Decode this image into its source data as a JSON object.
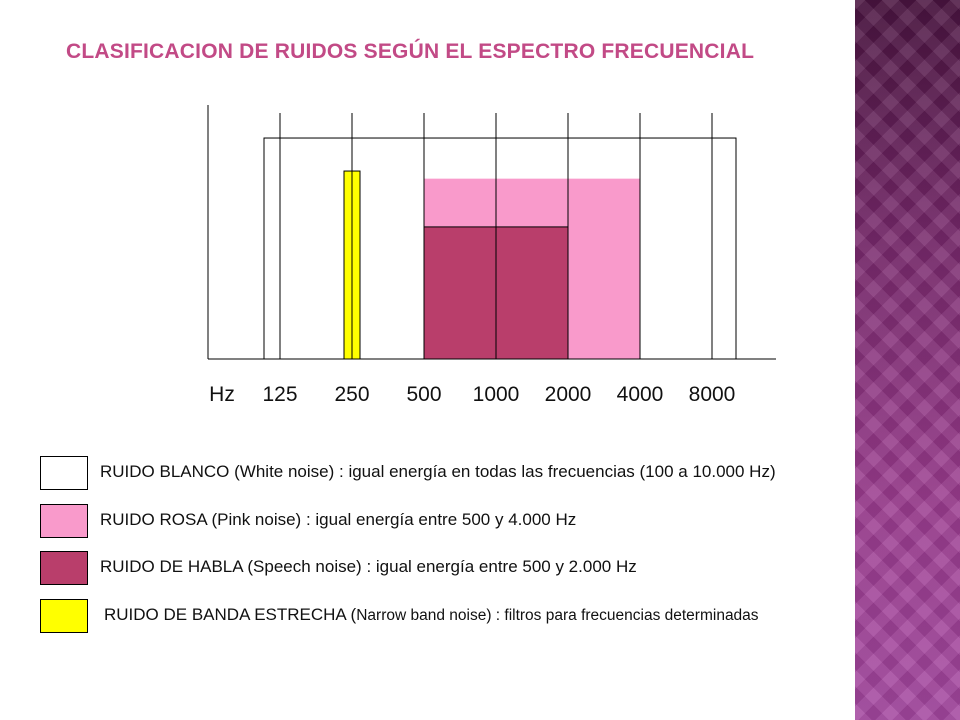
{
  "title": "CLASIFICACION DE RUIDOS SEGÚN EL ESPECTRO FRECUENCIAL",
  "colors": {
    "title": "#c24a86",
    "white_noise": "#ffffff",
    "pink_noise": "#f99acb",
    "speech_noise": "#b93e6b",
    "narrow_band": "#ffff00",
    "side_band": "#9c3d90"
  },
  "chart_data": {
    "type": "bar",
    "axis_unit_label": "Hz",
    "categories": [
      "125",
      "250",
      "500",
      "1000",
      "2000",
      "4000",
      "8000"
    ],
    "grid": true,
    "series": [
      {
        "name": "RUIDO BLANCO",
        "band_hz": [
          100,
          10000
        ],
        "level": 0.87,
        "color": "#ffffff"
      },
      {
        "name": "RUIDO ROSA",
        "band_hz": [
          500,
          4000
        ],
        "level": 0.71,
        "color": "#f99acb"
      },
      {
        "name": "RUIDO DE HABLA",
        "band_hz": [
          500,
          2000
        ],
        "level": 0.52,
        "color": "#b93e6b"
      },
      {
        "name": "RUIDO DE BANDA ESTRECHA",
        "band_hz": [
          250,
          250
        ],
        "level": 0.74,
        "color": "#ffff00"
      }
    ]
  },
  "legend": [
    {
      "label_a": "RUIDO BLANCO (White noise) : igual energía en todas las frecuencias (100 a 10.000 Hz)",
      "label_b": "",
      "color": "#ffffff"
    },
    {
      "label_a": "RUIDO ROSA (Pink noise) : igual energía entre 500 y 4.000 Hz",
      "label_b": "",
      "color": "#f99acb"
    },
    {
      "label_a": "RUIDO DE HABLA (Speech noise) : igual energía entre 500 y 2.000 Hz",
      "label_b": "",
      "color": "#b93e6b"
    },
    {
      "label_a": "RUIDO DE BANDA ESTRECHA (",
      "label_b": "Narrow band noise) : filtros para frecuencias determinadas",
      "color": "#ffff00"
    }
  ]
}
